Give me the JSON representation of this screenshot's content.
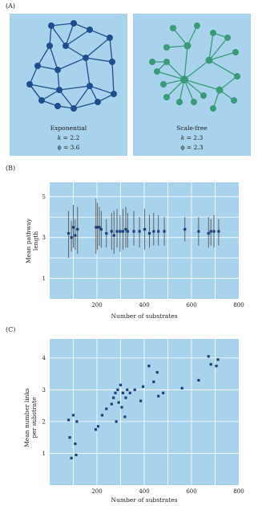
{
  "panels": {
    "a_letter": "(A)",
    "b_letter": "(B)",
    "c_letter": "(C)"
  },
  "networks": {
    "exponential": {
      "name": "Exponential",
      "k_label": "k",
      "k_value": "= 2.2",
      "phi_label": "ϕ = 3.6",
      "color": "#1f4e8c"
    },
    "scale_free": {
      "name": "Scale-free",
      "k_label": "k",
      "k_value": "= 2.3",
      "phi_label": "ϕ = 2.3",
      "color": "#3a9a7a"
    }
  },
  "chart_data": [
    {
      "type": "scatter",
      "panel": "B",
      "xlabel": "Number of substrates",
      "ylabel_line1": "Mean pathway",
      "ylabel_line2": "length",
      "xlim": [
        0,
        800
      ],
      "ylim": [
        0,
        5.7
      ],
      "xticks": [
        200,
        400,
        600,
        800
      ],
      "yticks": [
        1,
        3,
        5
      ],
      "error_bars": true,
      "points": [
        {
          "x": 80,
          "y": 3.2,
          "lo": 2.0,
          "hi": 4.3
        },
        {
          "x": 92,
          "y": 3.0,
          "lo": 2.3,
          "hi": 3.8
        },
        {
          "x": 100,
          "y": 3.5,
          "lo": 2.5,
          "hi": 4.6
        },
        {
          "x": 108,
          "y": 3.1,
          "lo": 2.4,
          "hi": 3.9
        },
        {
          "x": 118,
          "y": 3.4,
          "lo": 2.2,
          "hi": 4.5
        },
        {
          "x": 196,
          "y": 3.5,
          "lo": 2.2,
          "hi": 4.9
        },
        {
          "x": 202,
          "y": 3.5,
          "lo": 2.4,
          "hi": 4.7
        },
        {
          "x": 210,
          "y": 3.5,
          "lo": 2.6,
          "hi": 4.5
        },
        {
          "x": 218,
          "y": 3.4,
          "lo": 2.5,
          "hi": 4.3
        },
        {
          "x": 240,
          "y": 3.2,
          "lo": 2.5,
          "hi": 3.9
        },
        {
          "x": 262,
          "y": 3.3,
          "lo": 2.4,
          "hi": 4.2
        },
        {
          "x": 272,
          "y": 3.1,
          "lo": 2.2,
          "hi": 4.3
        },
        {
          "x": 285,
          "y": 3.3,
          "lo": 2.5,
          "hi": 4.4
        },
        {
          "x": 298,
          "y": 3.3,
          "lo": 2.3,
          "hi": 4.1
        },
        {
          "x": 310,
          "y": 3.3,
          "lo": 2.4,
          "hi": 4.4
        },
        {
          "x": 322,
          "y": 3.4,
          "lo": 2.5,
          "hi": 4.5
        },
        {
          "x": 330,
          "y": 3.3,
          "lo": 2.5,
          "hi": 4.2
        },
        {
          "x": 356,
          "y": 3.3,
          "lo": 2.6,
          "hi": 4.3
        },
        {
          "x": 380,
          "y": 3.3,
          "lo": 2.5,
          "hi": 4.0
        },
        {
          "x": 402,
          "y": 3.4,
          "lo": 2.4,
          "hi": 4.4
        },
        {
          "x": 422,
          "y": 3.2,
          "lo": 2.5,
          "hi": 4.1
        },
        {
          "x": 440,
          "y": 3.3,
          "lo": 2.6,
          "hi": 4.2
        },
        {
          "x": 460,
          "y": 3.3,
          "lo": 2.6,
          "hi": 4.1
        },
        {
          "x": 485,
          "y": 3.3,
          "lo": 2.6,
          "hi": 4.0
        },
        {
          "x": 572,
          "y": 3.4,
          "lo": 2.8,
          "hi": 4.0
        },
        {
          "x": 630,
          "y": 3.3,
          "lo": 2.6,
          "hi": 4.0
        },
        {
          "x": 672,
          "y": 3.2,
          "lo": 2.5,
          "hi": 4.0
        },
        {
          "x": 682,
          "y": 3.3,
          "lo": 2.6,
          "hi": 3.9
        },
        {
          "x": 695,
          "y": 3.3,
          "lo": 2.5,
          "hi": 4.1
        },
        {
          "x": 715,
          "y": 3.3,
          "lo": 2.6,
          "hi": 3.9
        }
      ]
    },
    {
      "type": "scatter",
      "panel": "C",
      "xlabel": "Number of substrates",
      "ylabel_line1": "Mean number links",
      "ylabel_line2": "per substrate",
      "xlim": [
        0,
        800
      ],
      "ylim": [
        0,
        4.6
      ],
      "xticks": [
        200,
        400,
        600,
        800
      ],
      "yticks": [
        1,
        2,
        3,
        4
      ],
      "points": [
        {
          "x": 80,
          "y": 2.05
        },
        {
          "x": 85,
          "y": 1.5
        },
        {
          "x": 92,
          "y": 0.85
        },
        {
          "x": 100,
          "y": 2.2
        },
        {
          "x": 108,
          "y": 1.3
        },
        {
          "x": 112,
          "y": 0.95
        },
        {
          "x": 115,
          "y": 2.0
        },
        {
          "x": 195,
          "y": 1.75
        },
        {
          "x": 205,
          "y": 1.85
        },
        {
          "x": 222,
          "y": 2.2
        },
        {
          "x": 240,
          "y": 2.4
        },
        {
          "x": 262,
          "y": 2.55
        },
        {
          "x": 270,
          "y": 2.75
        },
        {
          "x": 278,
          "y": 2.9
        },
        {
          "x": 282,
          "y": 2.0
        },
        {
          "x": 288,
          "y": 3.0
        },
        {
          "x": 292,
          "y": 2.6
        },
        {
          "x": 300,
          "y": 3.15
        },
        {
          "x": 305,
          "y": 2.45
        },
        {
          "x": 310,
          "y": 2.9
        },
        {
          "x": 318,
          "y": 2.15
        },
        {
          "x": 322,
          "y": 2.75
        },
        {
          "x": 328,
          "y": 3.0
        },
        {
          "x": 340,
          "y": 2.9
        },
        {
          "x": 360,
          "y": 3.0
        },
        {
          "x": 385,
          "y": 2.65
        },
        {
          "x": 395,
          "y": 3.1
        },
        {
          "x": 420,
          "y": 3.75
        },
        {
          "x": 440,
          "y": 3.25
        },
        {
          "x": 455,
          "y": 3.55
        },
        {
          "x": 460,
          "y": 2.8
        },
        {
          "x": 480,
          "y": 2.9
        },
        {
          "x": 560,
          "y": 3.05
        },
        {
          "x": 630,
          "y": 3.3
        },
        {
          "x": 672,
          "y": 4.05
        },
        {
          "x": 682,
          "y": 3.8
        },
        {
          "x": 705,
          "y": 3.75
        },
        {
          "x": 712,
          "y": 3.95
        }
      ]
    }
  ]
}
